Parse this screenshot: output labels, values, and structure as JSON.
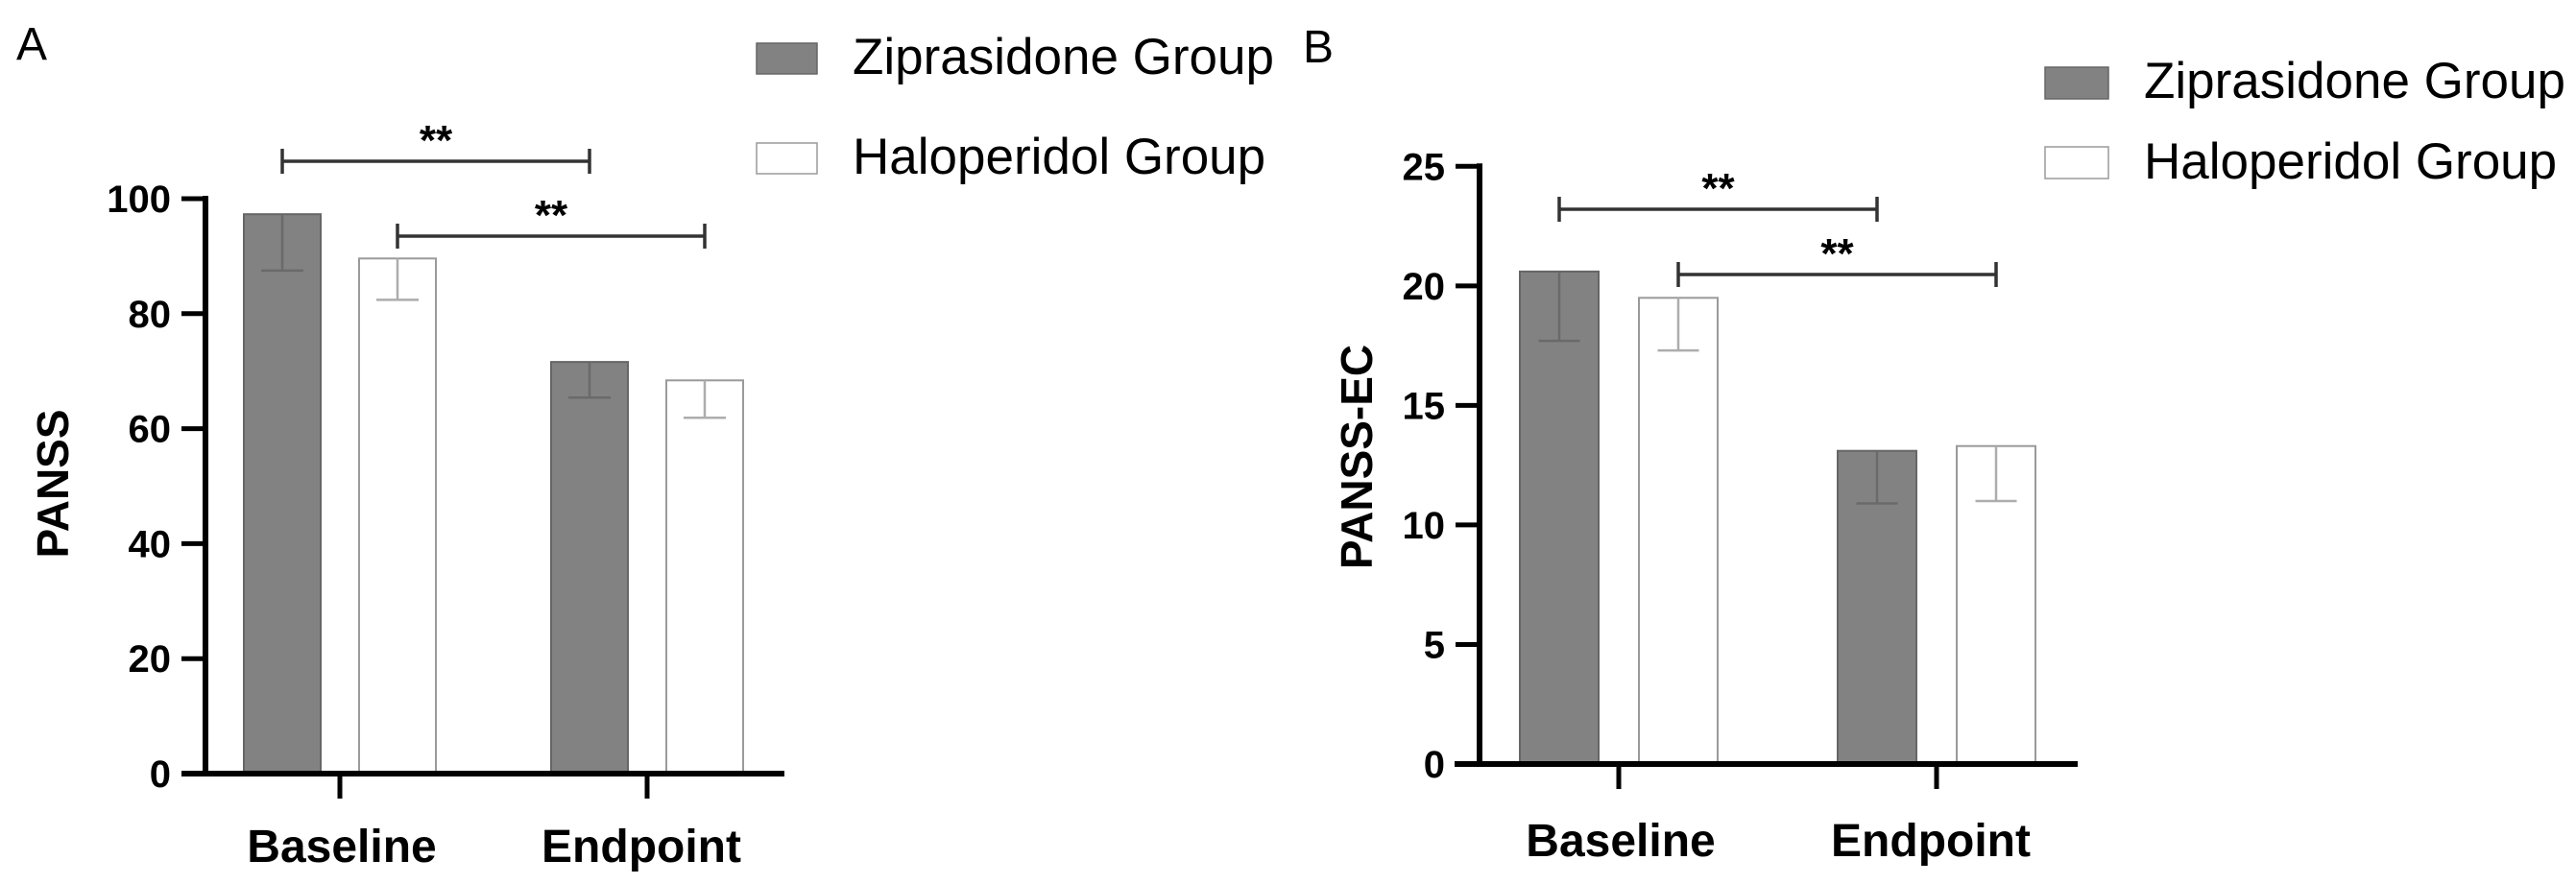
{
  "chart_data": [
    {
      "panel_label": "A",
      "type": "bar",
      "title": "",
      "xlabel": "",
      "ylabel": "PANSS",
      "categories": [
        "Baseline",
        "Endpoint"
      ],
      "series": [
        {
          "name": "Ziprasidone Group",
          "values": [
            97.3,
            71.6
          ],
          "error": [
            9.8,
            6.2
          ],
          "color": "#828282",
          "stroke": "#666666",
          "error_color": "#6a6a6a"
        },
        {
          "name": "Haloperidol Group",
          "values": [
            89.6,
            68.4
          ],
          "error": [
            7.2,
            6.5
          ],
          "color": "#ffffff",
          "stroke": "#9a9a9a",
          "error_color": "#adadad"
        }
      ],
      "ylim": [
        0,
        100
      ],
      "yticks": [
        0,
        20,
        40,
        60,
        80,
        100
      ],
      "ytick_labels": [
        "0",
        "20",
        "40",
        "60",
        "80",
        "100"
      ],
      "grid": false,
      "legend": {
        "position": "top-right"
      },
      "significance": [
        {
          "series": "Ziprasidone Group",
          "from_category": "Baseline",
          "to_category": "Endpoint",
          "label": "**"
        },
        {
          "series": "Haloperidol Group",
          "from_category": "Baseline",
          "to_category": "Endpoint",
          "label": "**"
        }
      ]
    },
    {
      "panel_label": "B",
      "type": "bar",
      "title": "",
      "xlabel": "",
      "ylabel": "PANSS-EC",
      "categories": [
        "Baseline",
        "Endpoint"
      ],
      "series": [
        {
          "name": "Ziprasidone Group",
          "values": [
            20.6,
            13.1
          ],
          "error": [
            2.9,
            2.2
          ],
          "color": "#828282",
          "stroke": "#666666",
          "error_color": "#6a6a6a"
        },
        {
          "name": "Haloperidol Group",
          "values": [
            19.5,
            13.3
          ],
          "error": [
            2.2,
            2.3
          ],
          "color": "#ffffff",
          "stroke": "#9a9a9a",
          "error_color": "#adadad"
        }
      ],
      "ylim": [
        0,
        25
      ],
      "yticks": [
        0,
        5,
        10,
        15,
        20,
        25
      ],
      "ytick_labels": [
        "0",
        "5",
        "10",
        "15",
        "20",
        "25"
      ],
      "grid": false,
      "legend": {
        "position": "top-right"
      },
      "significance": [
        {
          "series": "Ziprasidone Group",
          "from_category": "Baseline",
          "to_category": "Endpoint",
          "label": "**"
        },
        {
          "series": "Haloperidol Group",
          "from_category": "Baseline",
          "to_category": "Endpoint",
          "label": "**"
        }
      ]
    }
  ]
}
